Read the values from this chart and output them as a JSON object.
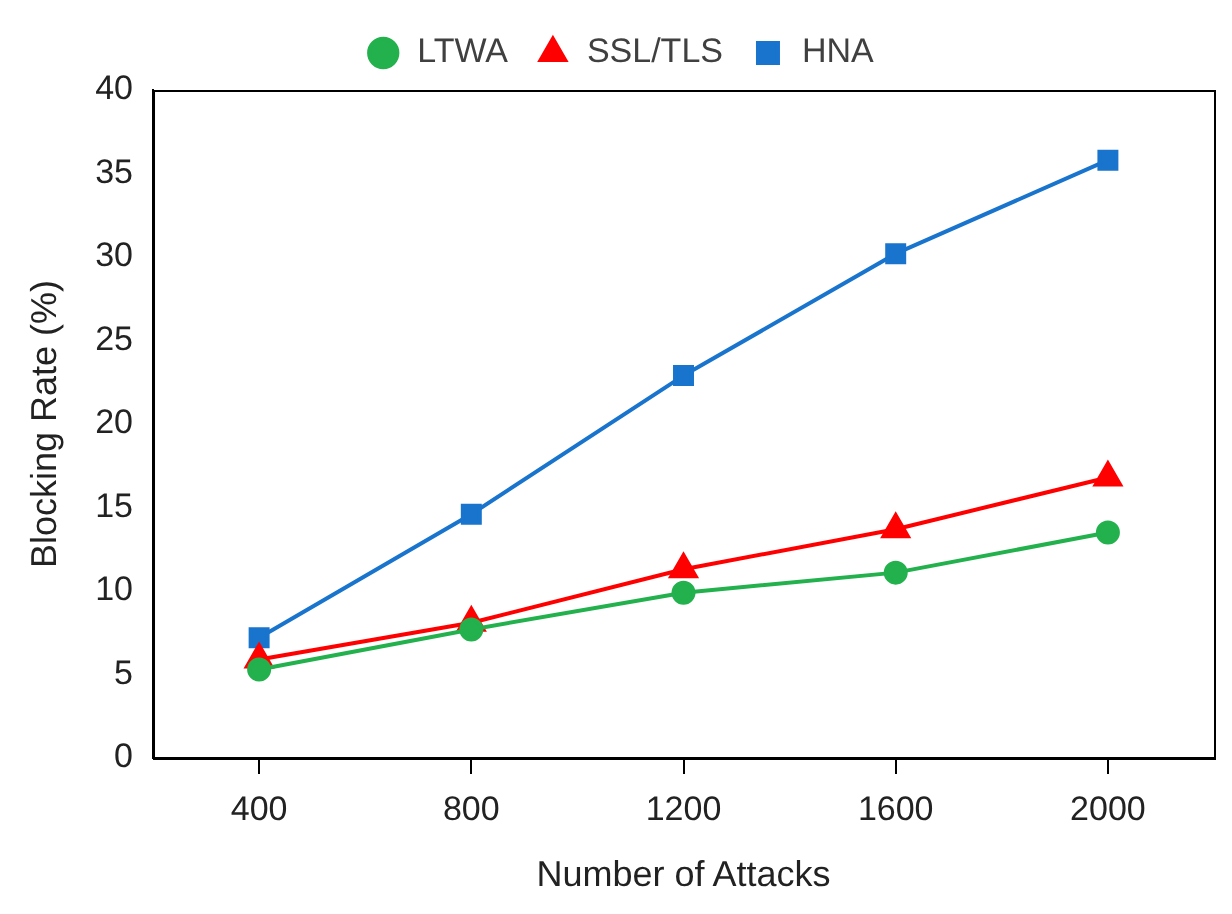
{
  "chart_data": {
    "type": "line",
    "xlabel": "Number of Attacks",
    "ylabel": "Blocking Rate (%)",
    "categories": [
      "400",
      "800",
      "1200",
      "1600",
      "2000"
    ],
    "ylim": [
      0,
      40
    ],
    "yticks": [
      0,
      5,
      10,
      15,
      20,
      25,
      30,
      35,
      40
    ],
    "grid": false,
    "legend": "top",
    "line_style": "solid",
    "series": [
      {
        "name": "LTWA",
        "color": "#22b14c",
        "marker": "circle",
        "values": [
          5.3,
          7.7,
          9.9,
          11.1,
          13.5
        ]
      },
      {
        "name": "SSL/TLS",
        "color": "#ff0000",
        "marker": "triangle",
        "values": [
          5.9,
          8.1,
          11.3,
          13.7,
          16.8
        ]
      },
      {
        "name": "HNA",
        "color": "#1874cd",
        "marker": "square",
        "values": [
          7.2,
          14.6,
          22.9,
          30.2,
          35.8
        ]
      }
    ]
  }
}
